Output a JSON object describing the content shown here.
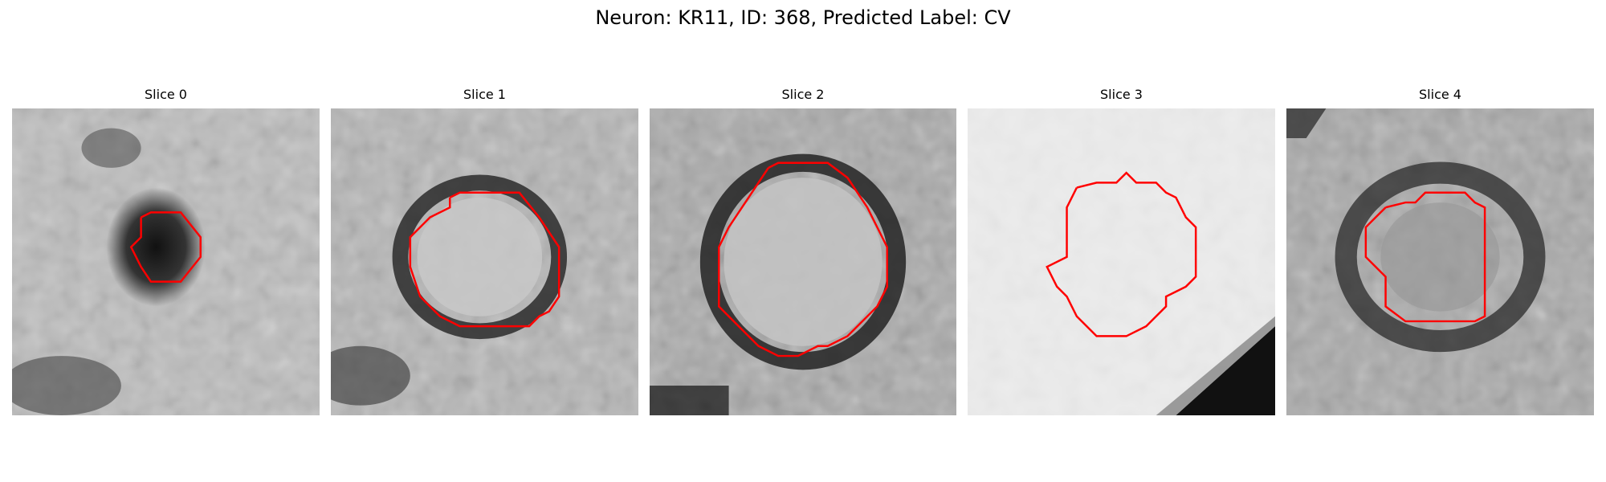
{
  "figure": {
    "title": "Neuron: KR11, ID: 368, Predicted Label: CV"
  },
  "colors": {
    "contour": "#ff0000",
    "background": "#ffffff"
  },
  "panels": [
    {
      "title": "Slice 0"
    },
    {
      "title": "Slice 1"
    },
    {
      "title": "Slice 2"
    },
    {
      "title": "Slice 3"
    },
    {
      "title": "Slice 4"
    }
  ]
}
